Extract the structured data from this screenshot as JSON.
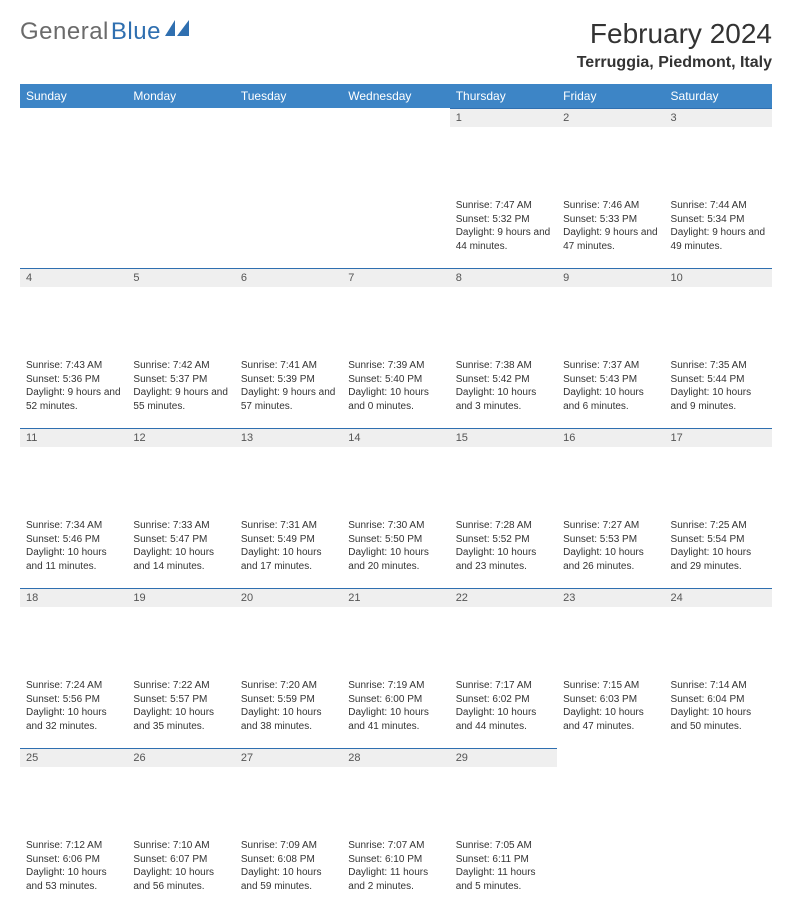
{
  "brand": {
    "general": "General",
    "blue": "Blue"
  },
  "title": "February 2024",
  "location": "Terruggia, Piedmont, Italy",
  "colors": {
    "header_bg": "#3d85c6",
    "accent": "#2f6fb0",
    "daynum_bg": "#efefef",
    "text": "#333333"
  },
  "weekdays": [
    "Sunday",
    "Monday",
    "Tuesday",
    "Wednesday",
    "Thursday",
    "Friday",
    "Saturday"
  ],
  "weeks": [
    [
      null,
      null,
      null,
      null,
      {
        "n": "1",
        "sunrise": "Sunrise: 7:47 AM",
        "sunset": "Sunset: 5:32 PM",
        "daylight": "Daylight: 9 hours and 44 minutes."
      },
      {
        "n": "2",
        "sunrise": "Sunrise: 7:46 AM",
        "sunset": "Sunset: 5:33 PM",
        "daylight": "Daylight: 9 hours and 47 minutes."
      },
      {
        "n": "3",
        "sunrise": "Sunrise: 7:44 AM",
        "sunset": "Sunset: 5:34 PM",
        "daylight": "Daylight: 9 hours and 49 minutes."
      }
    ],
    [
      {
        "n": "4",
        "sunrise": "Sunrise: 7:43 AM",
        "sunset": "Sunset: 5:36 PM",
        "daylight": "Daylight: 9 hours and 52 minutes."
      },
      {
        "n": "5",
        "sunrise": "Sunrise: 7:42 AM",
        "sunset": "Sunset: 5:37 PM",
        "daylight": "Daylight: 9 hours and 55 minutes."
      },
      {
        "n": "6",
        "sunrise": "Sunrise: 7:41 AM",
        "sunset": "Sunset: 5:39 PM",
        "daylight": "Daylight: 9 hours and 57 minutes."
      },
      {
        "n": "7",
        "sunrise": "Sunrise: 7:39 AM",
        "sunset": "Sunset: 5:40 PM",
        "daylight": "Daylight: 10 hours and 0 minutes."
      },
      {
        "n": "8",
        "sunrise": "Sunrise: 7:38 AM",
        "sunset": "Sunset: 5:42 PM",
        "daylight": "Daylight: 10 hours and 3 minutes."
      },
      {
        "n": "9",
        "sunrise": "Sunrise: 7:37 AM",
        "sunset": "Sunset: 5:43 PM",
        "daylight": "Daylight: 10 hours and 6 minutes."
      },
      {
        "n": "10",
        "sunrise": "Sunrise: 7:35 AM",
        "sunset": "Sunset: 5:44 PM",
        "daylight": "Daylight: 10 hours and 9 minutes."
      }
    ],
    [
      {
        "n": "11",
        "sunrise": "Sunrise: 7:34 AM",
        "sunset": "Sunset: 5:46 PM",
        "daylight": "Daylight: 10 hours and 11 minutes."
      },
      {
        "n": "12",
        "sunrise": "Sunrise: 7:33 AM",
        "sunset": "Sunset: 5:47 PM",
        "daylight": "Daylight: 10 hours and 14 minutes."
      },
      {
        "n": "13",
        "sunrise": "Sunrise: 7:31 AM",
        "sunset": "Sunset: 5:49 PM",
        "daylight": "Daylight: 10 hours and 17 minutes."
      },
      {
        "n": "14",
        "sunrise": "Sunrise: 7:30 AM",
        "sunset": "Sunset: 5:50 PM",
        "daylight": "Daylight: 10 hours and 20 minutes."
      },
      {
        "n": "15",
        "sunrise": "Sunrise: 7:28 AM",
        "sunset": "Sunset: 5:52 PM",
        "daylight": "Daylight: 10 hours and 23 minutes."
      },
      {
        "n": "16",
        "sunrise": "Sunrise: 7:27 AM",
        "sunset": "Sunset: 5:53 PM",
        "daylight": "Daylight: 10 hours and 26 minutes."
      },
      {
        "n": "17",
        "sunrise": "Sunrise: 7:25 AM",
        "sunset": "Sunset: 5:54 PM",
        "daylight": "Daylight: 10 hours and 29 minutes."
      }
    ],
    [
      {
        "n": "18",
        "sunrise": "Sunrise: 7:24 AM",
        "sunset": "Sunset: 5:56 PM",
        "daylight": "Daylight: 10 hours and 32 minutes."
      },
      {
        "n": "19",
        "sunrise": "Sunrise: 7:22 AM",
        "sunset": "Sunset: 5:57 PM",
        "daylight": "Daylight: 10 hours and 35 minutes."
      },
      {
        "n": "20",
        "sunrise": "Sunrise: 7:20 AM",
        "sunset": "Sunset: 5:59 PM",
        "daylight": "Daylight: 10 hours and 38 minutes."
      },
      {
        "n": "21",
        "sunrise": "Sunrise: 7:19 AM",
        "sunset": "Sunset: 6:00 PM",
        "daylight": "Daylight: 10 hours and 41 minutes."
      },
      {
        "n": "22",
        "sunrise": "Sunrise: 7:17 AM",
        "sunset": "Sunset: 6:02 PM",
        "daylight": "Daylight: 10 hours and 44 minutes."
      },
      {
        "n": "23",
        "sunrise": "Sunrise: 7:15 AM",
        "sunset": "Sunset: 6:03 PM",
        "daylight": "Daylight: 10 hours and 47 minutes."
      },
      {
        "n": "24",
        "sunrise": "Sunrise: 7:14 AM",
        "sunset": "Sunset: 6:04 PM",
        "daylight": "Daylight: 10 hours and 50 minutes."
      }
    ],
    [
      {
        "n": "25",
        "sunrise": "Sunrise: 7:12 AM",
        "sunset": "Sunset: 6:06 PM",
        "daylight": "Daylight: 10 hours and 53 minutes."
      },
      {
        "n": "26",
        "sunrise": "Sunrise: 7:10 AM",
        "sunset": "Sunset: 6:07 PM",
        "daylight": "Daylight: 10 hours and 56 minutes."
      },
      {
        "n": "27",
        "sunrise": "Sunrise: 7:09 AM",
        "sunset": "Sunset: 6:08 PM",
        "daylight": "Daylight: 10 hours and 59 minutes."
      },
      {
        "n": "28",
        "sunrise": "Sunrise: 7:07 AM",
        "sunset": "Sunset: 6:10 PM",
        "daylight": "Daylight: 11 hours and 2 minutes."
      },
      {
        "n": "29",
        "sunrise": "Sunrise: 7:05 AM",
        "sunset": "Sunset: 6:11 PM",
        "daylight": "Daylight: 11 hours and 5 minutes."
      },
      null,
      null
    ]
  ]
}
